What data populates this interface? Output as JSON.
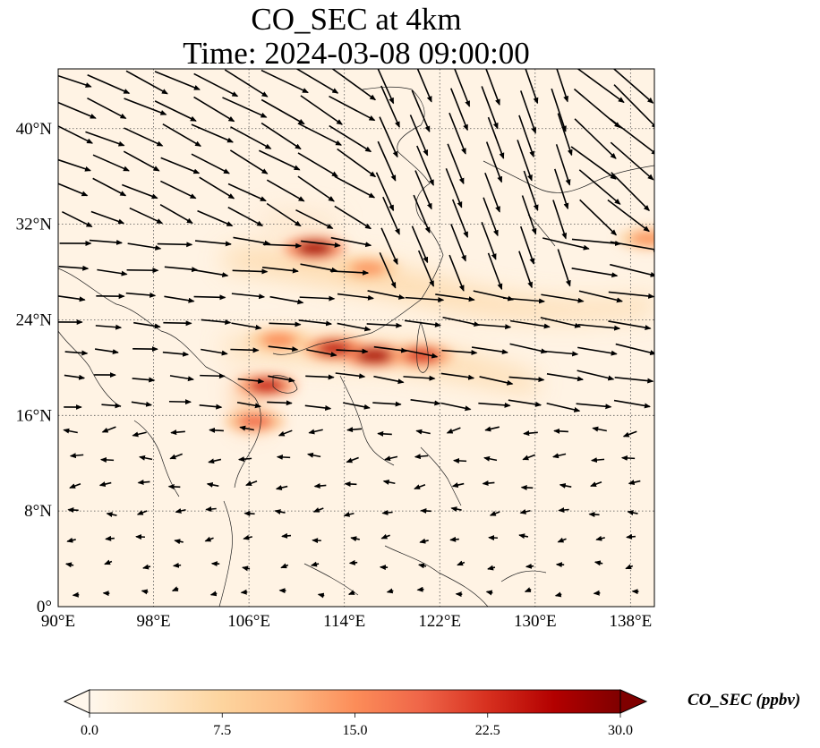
{
  "title": {
    "line1": "CO_SEC at 4km",
    "line2": "Time: 2024-03-08 09:00:00"
  },
  "map": {
    "lon_range": [
      90,
      140
    ],
    "lat_range": [
      0,
      45
    ],
    "lon_ticks": [
      90,
      98,
      106,
      114,
      122,
      130,
      138
    ],
    "lat_ticks": [
      0,
      8,
      16,
      24,
      32,
      40
    ],
    "lon_tick_labels": [
      "90°E",
      "98°E",
      "106°E",
      "114°E",
      "122°E",
      "130°E",
      "138°E"
    ],
    "lat_tick_labels": [
      "0°",
      "8°N",
      "16°N",
      "24°N",
      "32°N",
      "40°N"
    ],
    "gridlines": "dotted",
    "field": "CO_SEC",
    "level": "4km",
    "plumes": [
      {
        "lon": 111.5,
        "lat": 30.0,
        "value": 27
      },
      {
        "lon": 116.0,
        "lat": 28.3,
        "value": 14
      },
      {
        "lon": 113.2,
        "lat": 21.6,
        "value": 25
      },
      {
        "lon": 116.5,
        "lat": 21.0,
        "value": 27
      },
      {
        "lon": 120.5,
        "lat": 21.0,
        "value": 22
      },
      {
        "lon": 107.5,
        "lat": 18.5,
        "value": 24
      },
      {
        "lon": 106.5,
        "lat": 15.5,
        "value": 18
      },
      {
        "lon": 108.5,
        "lat": 22.3,
        "value": 15
      },
      {
        "lon": 139.5,
        "lat": 30.8,
        "value": 14
      }
    ]
  },
  "colorbar": {
    "label": "CO_SEC (ppbv)",
    "min": 0.0,
    "max": 30.0,
    "ticks": [
      "0.0",
      "7.5",
      "15.0",
      "22.5",
      "30.0"
    ],
    "colormap": [
      "#fff7ec",
      "#fee8c8",
      "#fdd49e",
      "#fdbb84",
      "#fc8d59",
      "#ef6548",
      "#d7301f",
      "#b30000",
      "#7f0000"
    ],
    "extend": "both"
  }
}
